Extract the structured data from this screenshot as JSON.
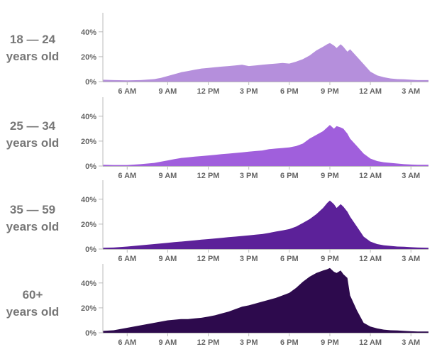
{
  "chart_data": [
    {
      "type": "area",
      "label_lines": [
        "18 — 24",
        "years old"
      ],
      "color": "#b58fdc",
      "yticks": [
        "40%",
        "20%",
        "0%"
      ],
      "ytick_values": [
        40,
        20,
        0
      ],
      "xticks": [
        "6 AM",
        "9 AM",
        "12 PM",
        "3 PM",
        "6 PM",
        "9 PM",
        "12 AM",
        "3 AM"
      ],
      "xtick_hours": [
        6,
        9,
        12,
        15,
        18,
        21,
        24,
        27
      ],
      "ylim": [
        0,
        53
      ],
      "xlim_hours": [
        4.2,
        28.3
      ],
      "x_hours": [
        4.2,
        5,
        6,
        7,
        8,
        8.5,
        9,
        9.5,
        10,
        10.5,
        11,
        11.5,
        12,
        12.5,
        13,
        13.5,
        14,
        14.5,
        15,
        15.5,
        16,
        16.5,
        17,
        17.5,
        18,
        18.5,
        19,
        19.5,
        20,
        20.5,
        20.8,
        21,
        21.3,
        21.5,
        21.8,
        22,
        22.3,
        22.5,
        23,
        23.5,
        24,
        24.5,
        25,
        25.5,
        26,
        26.5,
        27,
        27.5,
        28.3
      ],
      "y_percent": [
        1.5,
        1.2,
        1,
        1.2,
        2,
        3,
        4.5,
        6,
        7.5,
        8.5,
        9.5,
        10.5,
        11,
        11.5,
        12,
        12.5,
        13,
        13.5,
        12.5,
        13,
        13.5,
        14,
        14.5,
        15,
        14.5,
        16,
        18,
        21,
        25,
        28,
        30,
        31,
        29,
        27,
        30,
        28,
        24,
        26,
        20,
        14,
        8,
        5,
        3.5,
        2.5,
        2,
        1.8,
        1.5,
        1.2,
        1.2
      ]
    },
    {
      "type": "area",
      "label_lines": [
        "25 — 34",
        "years old"
      ],
      "color": "#a05fdc",
      "yticks": [
        "40%",
        "20%",
        "0%"
      ],
      "ytick_values": [
        40,
        20,
        0
      ],
      "xticks": [
        "6 AM",
        "9 AM",
        "12 PM",
        "3 PM",
        "6 PM",
        "9 PM",
        "12 AM",
        "3 AM"
      ],
      "xtick_hours": [
        6,
        9,
        12,
        15,
        18,
        21,
        24,
        27
      ],
      "ylim": [
        0,
        53
      ],
      "xlim_hours": [
        4.2,
        28.3
      ],
      "x_hours": [
        4.2,
        5,
        6,
        7,
        8,
        8.5,
        9,
        9.5,
        10,
        10.5,
        11,
        11.5,
        12,
        12.5,
        13,
        13.5,
        14,
        14.5,
        15,
        15.5,
        16,
        16.5,
        17,
        17.5,
        18,
        18.5,
        19,
        19.5,
        20,
        20.5,
        20.8,
        21,
        21.3,
        21.5,
        21.8,
        22,
        22.3,
        22.5,
        23,
        23.5,
        24,
        24.5,
        25,
        25.5,
        26,
        26.5,
        27,
        27.5,
        28.3
      ],
      "y_percent": [
        1,
        0.8,
        0.8,
        1.5,
        2.5,
        3.5,
        4.5,
        5.5,
        6.5,
        7,
        7.5,
        8,
        8.5,
        9,
        9.5,
        10,
        10.5,
        11,
        11.5,
        12,
        12.5,
        13.5,
        14,
        14.5,
        15,
        16,
        18,
        22,
        25,
        28,
        31,
        33,
        30,
        32,
        31,
        30,
        26,
        22,
        16,
        10,
        6,
        4,
        3,
        2.5,
        2,
        1.5,
        1.2,
        1,
        1
      ]
    },
    {
      "type": "area",
      "label_lines": [
        "35 — 59",
        "years old"
      ],
      "color": "#5c2199",
      "yticks": [
        "40%",
        "20%",
        "0%"
      ],
      "ytick_values": [
        40,
        20,
        0
      ],
      "xticks": [
        "6 AM",
        "9 AM",
        "12 PM",
        "3 PM",
        "6 PM",
        "9 PM",
        "12 AM",
        "3 AM"
      ],
      "xtick_hours": [
        6,
        9,
        12,
        15,
        18,
        21,
        24,
        27
      ],
      "ylim": [
        0,
        53
      ],
      "xlim_hours": [
        4.2,
        28.3
      ],
      "x_hours": [
        4.2,
        5,
        6,
        7,
        8,
        8.5,
        9,
        9.5,
        10,
        10.5,
        11,
        11.5,
        12,
        12.5,
        13,
        13.5,
        14,
        14.5,
        15,
        15.5,
        16,
        16.5,
        17,
        17.5,
        18,
        18.5,
        19,
        19.5,
        20,
        20.5,
        20.8,
        21,
        21.3,
        21.5,
        21.8,
        22,
        22.3,
        22.5,
        23,
        23.5,
        24,
        24.5,
        25,
        25.5,
        26,
        26.5,
        27,
        27.5,
        28.3
      ],
      "y_percent": [
        1,
        1.2,
        2,
        3,
        4,
        4.5,
        5,
        5.5,
        6,
        6.5,
        7,
        7.5,
        8,
        8.5,
        9,
        9.5,
        10,
        10.5,
        11,
        11.5,
        12,
        13,
        14,
        15,
        16,
        18,
        21,
        24,
        28,
        33,
        37,
        39,
        36,
        33,
        36,
        34,
        30,
        26,
        18,
        10,
        6,
        4,
        3,
        2.5,
        2,
        1.8,
        1.5,
        1.2,
        1
      ]
    },
    {
      "type": "area",
      "label_lines": [
        "60+",
        "years old"
      ],
      "color": "#2d0a4d",
      "yticks": [
        "40%",
        "20%",
        "0%"
      ],
      "ytick_values": [
        40,
        20,
        0
      ],
      "xticks": [
        "6 AM",
        "9 AM",
        "12 PM",
        "3 PM",
        "6 PM",
        "9 PM",
        "12 AM",
        "3 AM"
      ],
      "xtick_hours": [
        6,
        9,
        12,
        15,
        18,
        21,
        24,
        27
      ],
      "ylim": [
        0,
        53
      ],
      "xlim_hours": [
        4.2,
        28.3
      ],
      "x_hours": [
        4.2,
        5,
        6,
        7,
        8,
        8.5,
        9,
        9.5,
        10,
        10.5,
        11,
        11.5,
        12,
        12.5,
        13,
        13.5,
        14,
        14.5,
        15,
        15.5,
        16,
        16.5,
        17,
        17.5,
        18,
        18.5,
        19,
        19.5,
        20,
        20.5,
        20.8,
        21,
        21.3,
        21.5,
        21.8,
        22,
        22.3,
        22.5,
        23,
        23.5,
        24,
        24.5,
        25,
        25.5,
        26,
        26.5,
        27,
        27.5,
        28.3
      ],
      "y_percent": [
        1.5,
        2,
        4,
        6,
        8,
        9,
        10,
        10.5,
        11,
        11,
        11.5,
        12,
        13,
        14,
        15.5,
        17,
        19,
        21,
        22,
        23.5,
        25,
        26.5,
        28,
        30,
        32,
        36,
        41,
        45,
        48,
        50,
        51,
        52,
        49,
        48,
        50,
        47,
        44,
        30,
        18,
        8,
        5,
        3.5,
        2.5,
        2,
        1.8,
        1.5,
        1.2,
        1,
        1
      ]
    }
  ]
}
